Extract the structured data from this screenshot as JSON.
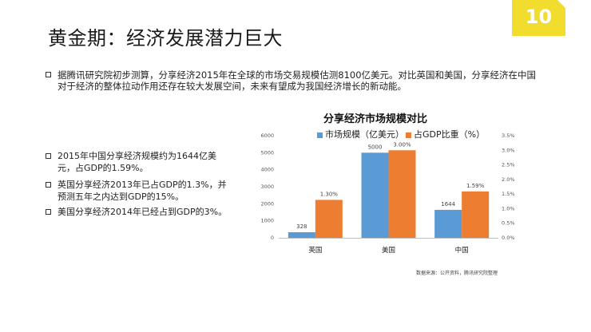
{
  "slide": {
    "title": "黄金期：经济发展潜力巨大",
    "page_number": "10",
    "intro": "据腾讯研究院初步测算，分享经济2015年在全球的市场交易规模估测8100亿美元。对比英国和美国，分享经济在中国对于经济的整体拉动作用还存在较大发展空间，未来有望成为我国经济增长的新动能。",
    "facts": [
      "2015年中国分享经济规模约为1644亿美元，占GDP的1.59%。",
      "英国分享经济2013年已占GDP的1.3%，并预测五年之内达到GDP的15%。",
      "美国分享经济2014年已经占到GDP的3%。"
    ],
    "source": "数据来源：公开资料，腾讯研究院整理"
  },
  "colors": {
    "accent": "#f2dc2e",
    "series_blue": "#5b9bd5",
    "series_orange": "#ed7d31"
  },
  "chart_data": {
    "type": "bar",
    "title": "分享经济市场规模对比",
    "categories": [
      "英国",
      "美国",
      "中国"
    ],
    "series": [
      {
        "name": "市场规模（亿美元）",
        "axis": "left",
        "values": [
          328,
          5000,
          1644
        ],
        "labels": [
          "328",
          "5000",
          "1644"
        ]
      },
      {
        "name": "占GDP比重（%）",
        "axis": "right",
        "values": [
          1.3,
          3.0,
          1.59
        ],
        "labels": [
          "1.30%",
          "3.00%",
          "1.59%"
        ]
      }
    ],
    "ylim": [
      0,
      6000
    ],
    "yticks": [
      "0",
      "1000",
      "2000",
      "3000",
      "4000",
      "5000",
      "6000"
    ],
    "ylim_right": [
      0,
      3.5
    ],
    "yticks_right": [
      "0.0%",
      "0.5%",
      "1.0%",
      "1.5%",
      "2.0%",
      "2.5%",
      "3.0%",
      "3.5%"
    ],
    "legend_position": "top",
    "grid": false
  }
}
